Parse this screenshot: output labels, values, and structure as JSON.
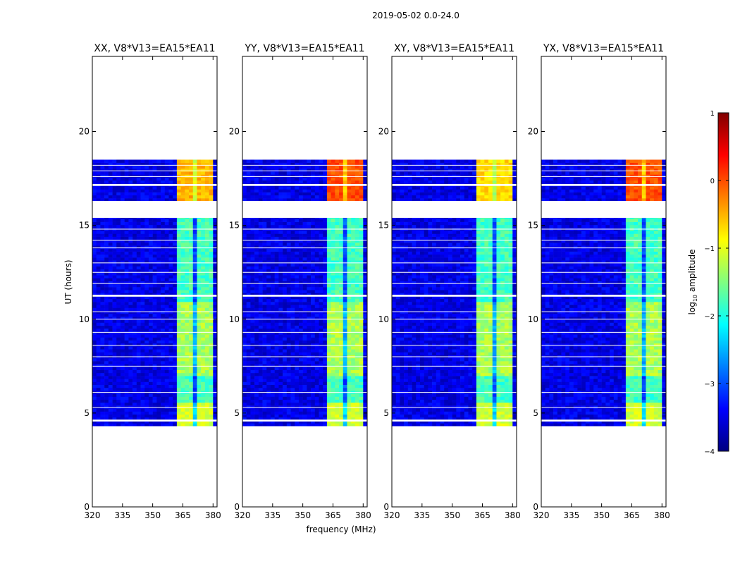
{
  "figure": {
    "suptitle": "2019-05-02 0.0-24.0",
    "xlabel": "frequency (MHz)",
    "ylabel": "UT (hours)",
    "colorbar": {
      "label_prefix": "log",
      "label_sub": "10",
      "label_suffix": " amplitude",
      "ticks": [
        "1",
        "0",
        "−1",
        "−2",
        "−3",
        "−4"
      ],
      "range": [
        -4,
        1
      ],
      "colormap": "jet",
      "colors": [
        "#000080",
        "#0000ff",
        "#0080ff",
        "#00ffff",
        "#80ff80",
        "#ffff00",
        "#ff8000",
        "#ff0000",
        "#800000"
      ]
    }
  },
  "chart_data": [
    {
      "type": "heatmap",
      "title": "XX, V8*V13=EA15*EA11",
      "xlim": [
        320,
        382
      ],
      "ylim": [
        0,
        24
      ],
      "xticks": [
        320,
        335,
        350,
        365,
        380
      ],
      "yticks": [
        0,
        5,
        10,
        15,
        20
      ],
      "data_time_span_hours": [
        4.3,
        18.5
      ],
      "gap_bands_hours": [
        [
          15.4,
          16.3
        ],
        [
          17.1,
          17.2
        ],
        [
          11.2,
          11.3
        ],
        [
          4.55,
          4.65
        ],
        [
          18.5,
          24
        ],
        [
          0,
          4.3
        ]
      ],
      "rfi_band_mhz": [
        362,
        380
      ],
      "rfi_peak_log_amplitude": -0.5,
      "background_log_amplitude": -3.5
    },
    {
      "type": "heatmap",
      "title": "YY, V8*V13=EA15*EA11",
      "xlim": [
        320,
        382
      ],
      "ylim": [
        0,
        24
      ],
      "xticks": [
        320,
        335,
        350,
        365,
        380
      ],
      "yticks": [
        0,
        5,
        10,
        15,
        20
      ],
      "data_time_span_hours": [
        4.3,
        18.5
      ],
      "gap_bands_hours": [
        [
          15.4,
          16.3
        ],
        [
          17.1,
          17.2
        ],
        [
          11.2,
          11.3
        ],
        [
          4.55,
          4.65
        ],
        [
          18.5,
          24
        ],
        [
          0,
          4.3
        ]
      ],
      "rfi_band_mhz": [
        362,
        380
      ],
      "rfi_peak_log_amplitude": 0.0,
      "background_log_amplitude": -3.5
    },
    {
      "type": "heatmap",
      "title": "XY, V8*V13=EA15*EA11",
      "xlim": [
        320,
        382
      ],
      "ylim": [
        0,
        24
      ],
      "xticks": [
        320,
        335,
        350,
        365,
        380
      ],
      "yticks": [
        0,
        5,
        10,
        15,
        20
      ],
      "data_time_span_hours": [
        4.3,
        18.5
      ],
      "gap_bands_hours": [
        [
          15.4,
          16.3
        ],
        [
          17.1,
          17.2
        ],
        [
          11.2,
          11.3
        ],
        [
          4.55,
          4.65
        ],
        [
          18.5,
          24
        ],
        [
          0,
          4.3
        ]
      ],
      "rfi_band_mhz": [
        362,
        380
      ],
      "rfi_peak_log_amplitude": -0.7,
      "background_log_amplitude": -3.5
    },
    {
      "type": "heatmap",
      "title": "YX, V8*V13=EA15*EA11",
      "xlim": [
        320,
        382
      ],
      "ylim": [
        0,
        24
      ],
      "xticks": [
        320,
        335,
        350,
        365,
        380
      ],
      "yticks": [
        0,
        5,
        10,
        15,
        20
      ],
      "data_time_span_hours": [
        4.3,
        18.5
      ],
      "gap_bands_hours": [
        [
          15.4,
          16.3
        ],
        [
          17.1,
          17.2
        ],
        [
          11.2,
          11.3
        ],
        [
          4.55,
          4.65
        ],
        [
          18.5,
          24
        ],
        [
          0,
          4.3
        ]
      ],
      "rfi_band_mhz": [
        362,
        380
      ],
      "rfi_peak_log_amplitude": 0.0,
      "background_log_amplitude": -3.5
    }
  ]
}
